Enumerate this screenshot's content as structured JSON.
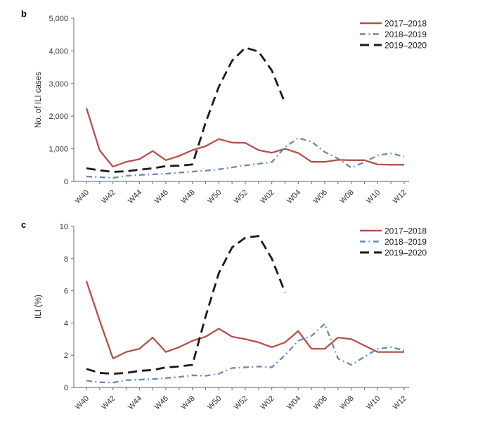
{
  "figure_title": "",
  "chart_data": [
    {
      "type": "line",
      "panel_label": "b",
      "title": "",
      "xlabel": "",
      "ylabel": "No. of ILI cases",
      "ylim": [
        0,
        5000
      ],
      "grid": false,
      "legend_position": "top-right",
      "y_ticks": [
        {
          "v": 0,
          "label": "0"
        },
        {
          "v": 1000,
          "label": "1,000"
        },
        {
          "v": 2000,
          "label": "2,000"
        },
        {
          "v": 3000,
          "label": "3,000"
        },
        {
          "v": 4000,
          "label": "4,000"
        },
        {
          "v": 5000,
          "label": "5,000"
        }
      ],
      "x": [
        "W40",
        "W41",
        "W42",
        "W43",
        "W44",
        "W45",
        "W46",
        "W47",
        "W48",
        "W49",
        "W50",
        "W51",
        "W52",
        "W01",
        "W02",
        "W03",
        "W04",
        "W05",
        "W06",
        "W07",
        "W08",
        "W09",
        "W10",
        "W11",
        "W12"
      ],
      "x_labeled_every": 2,
      "series": [
        {
          "name": "2017–2018",
          "color": "#b5504a",
          "style": "solid",
          "values": [
            2250,
            950,
            450,
            600,
            680,
            930,
            650,
            780,
            960,
            1080,
            1300,
            1190,
            1180,
            960,
            880,
            1000,
            870,
            600,
            600,
            660,
            650,
            650,
            520,
            510,
            510
          ]
        },
        {
          "name": "2018–2019",
          "color": "#6289bd",
          "style": "dash-dot",
          "values": [
            150,
            130,
            110,
            170,
            200,
            215,
            235,
            270,
            300,
            330,
            370,
            430,
            490,
            540,
            590,
            1050,
            1330,
            1220,
            900,
            700,
            420,
            590,
            800,
            860,
            760
          ]
        },
        {
          "name": "2019–2020",
          "color": "#1a1a1a",
          "style": "dashed",
          "values": [
            400,
            340,
            290,
            310,
            360,
            400,
            470,
            480,
            520,
            1800,
            2900,
            3700,
            4100,
            3980,
            3400,
            2400,
            null,
            null,
            null,
            null,
            null,
            null,
            null,
            null,
            null
          ]
        }
      ]
    },
    {
      "type": "line",
      "panel_label": "c",
      "title": "",
      "xlabel": "",
      "ylabel": "ILI (%)",
      "ylim": [
        0,
        10
      ],
      "grid": false,
      "legend_position": "top-right",
      "y_ticks": [
        {
          "v": 0,
          "label": "0"
        },
        {
          "v": 2,
          "label": "2"
        },
        {
          "v": 4,
          "label": "4"
        },
        {
          "v": 6,
          "label": "6"
        },
        {
          "v": 8,
          "label": "8"
        },
        {
          "v": 10,
          "label": "10"
        }
      ],
      "x": [
        "W40",
        "W41",
        "W42",
        "W43",
        "W44",
        "W45",
        "W46",
        "W47",
        "W48",
        "W49",
        "W50",
        "W51",
        "W52",
        "W01",
        "W02",
        "W03",
        "W04",
        "W05",
        "W06",
        "W07",
        "W08",
        "W09",
        "W10",
        "W11",
        "W12"
      ],
      "x_labeled_every": 2,
      "series": [
        {
          "name": "2017–2018",
          "color": "#b5504a",
          "style": "solid",
          "values": [
            6.6,
            4.15,
            1.8,
            2.2,
            2.4,
            3.1,
            2.2,
            2.5,
            2.9,
            3.15,
            3.65,
            3.15,
            3.0,
            2.8,
            2.5,
            2.8,
            3.5,
            2.4,
            2.4,
            3.1,
            3.0,
            2.6,
            2.2,
            2.2,
            2.2
          ]
        },
        {
          "name": "2018–2019",
          "color": "#6289bd",
          "style": "dash-dot",
          "values": [
            0.42,
            0.32,
            0.3,
            0.45,
            0.48,
            0.52,
            0.58,
            0.65,
            0.75,
            0.72,
            0.85,
            1.2,
            1.25,
            1.3,
            1.25,
            2.0,
            2.9,
            3.2,
            3.95,
            1.8,
            1.4,
            1.9,
            2.4,
            2.5,
            2.3
          ]
        },
        {
          "name": "2019–2020",
          "color": "#1a1a1a",
          "style": "dashed",
          "values": [
            1.15,
            0.9,
            0.85,
            0.9,
            1.03,
            1.08,
            1.25,
            1.3,
            1.4,
            4.4,
            7.1,
            8.7,
            9.3,
            9.4,
            8.0,
            5.9,
            null,
            null,
            null,
            null,
            null,
            null,
            null,
            null,
            null
          ]
        }
      ]
    }
  ]
}
